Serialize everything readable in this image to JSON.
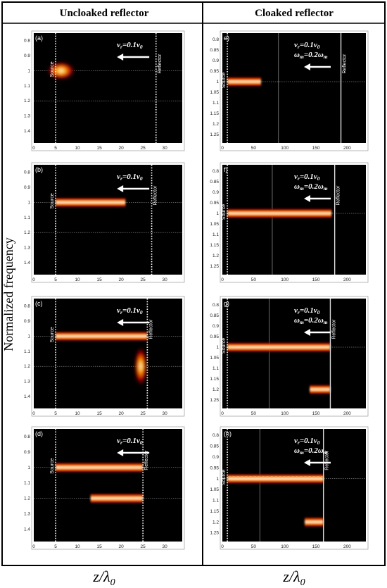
{
  "column_titles": {
    "left": "Uncloaked reflector",
    "right": "Cloaked reflector"
  },
  "y_axis_label": "Normalized frequency",
  "x_axis_label": {
    "main": "z/λ",
    "sub": "0"
  },
  "source_label": "Source",
  "reflector_label": "Reflector",
  "annotations": {
    "velocity": {
      "v": "v",
      "r": "r",
      "eq": "=0.1v",
      "zero": "0"
    },
    "modulation": {
      "w": "ω",
      "m": "m",
      "eq": "=0.2ω",
      "m2": "m"
    }
  },
  "colors": {
    "panel_bg": "#000000",
    "beam_core": "#ffffe6",
    "beam_mid": "#ffc000",
    "beam_edge": "#c00000",
    "frame": "#333333",
    "dotted": "#ffffff",
    "guide": "#b4b4b4"
  },
  "chart_data": [
    {
      "type": "heatmap",
      "panel": "(a)",
      "column": "Uncloaked reflector",
      "x_ticks": [
        "0",
        "5",
        "10",
        "15",
        "20",
        "25",
        "30"
      ],
      "xlim": [
        0,
        34
      ],
      "y_ticks": [
        "0.8",
        "0.9",
        "1",
        "1.1",
        "1.2",
        "1.3",
        "1.4"
      ],
      "ylim": [
        0.75,
        1.48
      ],
      "source_z": 5,
      "reflector_z": 28,
      "guide_lines_y": [
        1.0,
        1.2
      ],
      "annotation_lines": [
        "v_r=0.1v_0"
      ],
      "beams": [
        {
          "kind": "spot",
          "z_start": 3,
          "z_end": 9.5,
          "freq": 1.0
        }
      ]
    },
    {
      "type": "heatmap",
      "panel": "(b)",
      "column": "Uncloaked reflector",
      "x_ticks": [
        "0",
        "5",
        "10",
        "15",
        "20",
        "25",
        "30"
      ],
      "xlim": [
        0,
        34
      ],
      "y_ticks": [
        "0.8",
        "0.9",
        "1",
        "1.1",
        "1.2",
        "1.3",
        "1.4"
      ],
      "ylim": [
        0.75,
        1.48
      ],
      "source_z": 5,
      "reflector_z": 27,
      "guide_lines_y": [
        1.0,
        1.2
      ],
      "annotation_lines": [
        "v_r=0.1v_0"
      ],
      "beams": [
        {
          "kind": "band",
          "z_start": 5,
          "z_end": 21,
          "freq": 1.0
        }
      ]
    },
    {
      "type": "heatmap",
      "panel": "(c)",
      "column": "Uncloaked reflector",
      "x_ticks": [
        "0",
        "5",
        "10",
        "15",
        "20",
        "25",
        "30"
      ],
      "xlim": [
        0,
        34
      ],
      "y_ticks": [
        "0.8",
        "0.9",
        "1",
        "1.1",
        "1.2",
        "1.3",
        "1.4"
      ],
      "ylim": [
        0.75,
        1.48
      ],
      "source_z": 5,
      "reflector_z": 26,
      "guide_lines_y": [
        1.0,
        1.2
      ],
      "annotation_lines": [
        "v_r=0.1v_0"
      ],
      "beams": [
        {
          "kind": "band",
          "z_start": 5,
          "z_end": 26,
          "freq": 1.0
        },
        {
          "kind": "vspot",
          "z_start": 23,
          "z_end": 26,
          "freq": 1.2
        }
      ]
    },
    {
      "type": "heatmap",
      "panel": "(d)",
      "column": "Uncloaked reflector",
      "x_ticks": [
        "0",
        "5",
        "10",
        "15",
        "20",
        "25",
        "30"
      ],
      "xlim": [
        0,
        34
      ],
      "y_ticks": [
        "0.8",
        "0.9",
        "1",
        "1.1",
        "1.2",
        "1.3",
        "1.4"
      ],
      "ylim": [
        0.75,
        1.48
      ],
      "source_z": 5,
      "reflector_z": 25,
      "guide_lines_y": [
        1.0,
        1.2
      ],
      "annotation_lines": [
        "v_r=0.1v_0"
      ],
      "beams": [
        {
          "kind": "band",
          "z_start": 5,
          "z_end": 25,
          "freq": 1.0
        },
        {
          "kind": "band",
          "z_start": 13,
          "z_end": 25,
          "freq": 1.2
        }
      ]
    },
    {
      "type": "heatmap",
      "panel": "e)",
      "column": "Cloaked reflector",
      "x_ticks": [
        "0",
        "50",
        "100",
        "150",
        "200"
      ],
      "xlim": [
        0,
        230
      ],
      "y_ticks": [
        "0.8",
        "0.85",
        "0.9",
        "0.95",
        "1",
        "1.05",
        "1.1",
        "1.15",
        "1.2",
        "1.25"
      ],
      "ylim": [
        0.77,
        1.29
      ],
      "source_z": 8,
      "reflector_z": 190,
      "guide_z": 90,
      "guide_lines_y": [
        1.0
      ],
      "annotation_lines": [
        "v_r=0.1v_0",
        "ω_m=0.2ω_m"
      ],
      "beams": [
        {
          "kind": "band",
          "z_start": 8,
          "z_end": 62,
          "freq": 1.0
        }
      ]
    },
    {
      "type": "heatmap",
      "panel": "f)",
      "column": "Cloaked reflector",
      "x_ticks": [
        "0",
        "50",
        "100",
        "150",
        "200"
      ],
      "xlim": [
        0,
        230
      ],
      "y_ticks": [
        "0.8",
        "0.85",
        "0.9",
        "0.95",
        "1",
        "1.05",
        "1.1",
        "1.15",
        "1.2",
        "1.25"
      ],
      "ylim": [
        0.77,
        1.29
      ],
      "source_z": 8,
      "reflector_z": 180,
      "guide_z": 80,
      "guide_lines_y": [
        1.0
      ],
      "annotation_lines": [
        "v_r=0.1v_0",
        "ω_m=0.2ω_m"
      ],
      "beams": [
        {
          "kind": "band",
          "z_start": 8,
          "z_end": 175,
          "freq": 1.0
        }
      ]
    },
    {
      "type": "heatmap",
      "panel": "g)",
      "column": "Cloaked reflector",
      "x_ticks": [
        "0",
        "50",
        "100",
        "150",
        "200"
      ],
      "xlim": [
        0,
        230
      ],
      "y_ticks": [
        "0.8",
        "0.85",
        "0.9",
        "0.95",
        "1",
        "1.05",
        "1.1",
        "1.15",
        "1.2",
        "1.25"
      ],
      "ylim": [
        0.77,
        1.29
      ],
      "source_z": 8,
      "reflector_z": 173,
      "guide_z": 75,
      "guide_lines_y": [
        1.0
      ],
      "annotation_lines": [
        "v_r=0.1v_0",
        "ω_m=0.2ω_m"
      ],
      "beams": [
        {
          "kind": "band",
          "z_start": 8,
          "z_end": 173,
          "freq": 1.0
        },
        {
          "kind": "band",
          "z_start": 140,
          "z_end": 173,
          "freq": 1.2
        }
      ]
    },
    {
      "type": "heatmap",
      "panel": "(h)",
      "column": "Cloaked reflector",
      "x_ticks": [
        "0",
        "50",
        "100",
        "150",
        "200"
      ],
      "xlim": [
        0,
        230
      ],
      "y_ticks": [
        "0.8",
        "0.85",
        "0.9",
        "0.95",
        "1",
        "1.05",
        "1.1",
        "1.15",
        "1.2",
        "1.25"
      ],
      "ylim": [
        0.77,
        1.29
      ],
      "source_z": 8,
      "reflector_z": 162,
      "guide_z": 60,
      "guide_lines_y": [
        1.0
      ],
      "annotation_lines": [
        "v_r=0.1v_0",
        "ω_m=0.2ω_m"
      ],
      "beams": [
        {
          "kind": "band",
          "z_start": 8,
          "z_end": 162,
          "freq": 1.0,
          "wavy": true
        },
        {
          "kind": "band",
          "z_start": 132,
          "z_end": 162,
          "freq": 1.2
        }
      ]
    }
  ]
}
